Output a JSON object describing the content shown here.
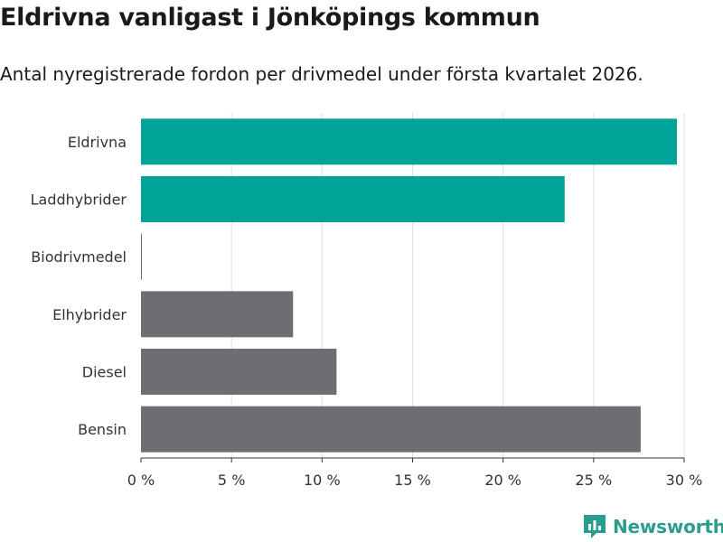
{
  "chart_data": {
    "type": "bar",
    "orientation": "horizontal",
    "title": "Eldrivna vanligast i Jönköpings kommun",
    "subtitle": "Antal nyregistrerade fordon per drivmedel under första kvartalet 2026.",
    "categories": [
      "Eldrivna",
      "Laddhybrider",
      "Biodrivmedel",
      "Elhybrider",
      "Diesel",
      "Bensin"
    ],
    "values": [
      29.6,
      23.4,
      0.05,
      8.4,
      10.8,
      27.6
    ],
    "colors": [
      "#00a398",
      "#00a398",
      "#6e6d73",
      "#6e6d73",
      "#6e6d73",
      "#6e6d73"
    ],
    "xlim": [
      0,
      30
    ],
    "xticks": [
      0,
      5,
      10,
      15,
      20,
      25,
      30
    ],
    "xtick_labels": [
      "0 %",
      "5 %",
      "10 %",
      "15 %",
      "20 %",
      "25 %",
      "30 %"
    ],
    "xlabel": "",
    "ylabel": "",
    "grid": true
  },
  "brand": {
    "name": "Newsworthy",
    "color": "#2a9d8f",
    "icon": "newsworthy-logo-icon"
  }
}
